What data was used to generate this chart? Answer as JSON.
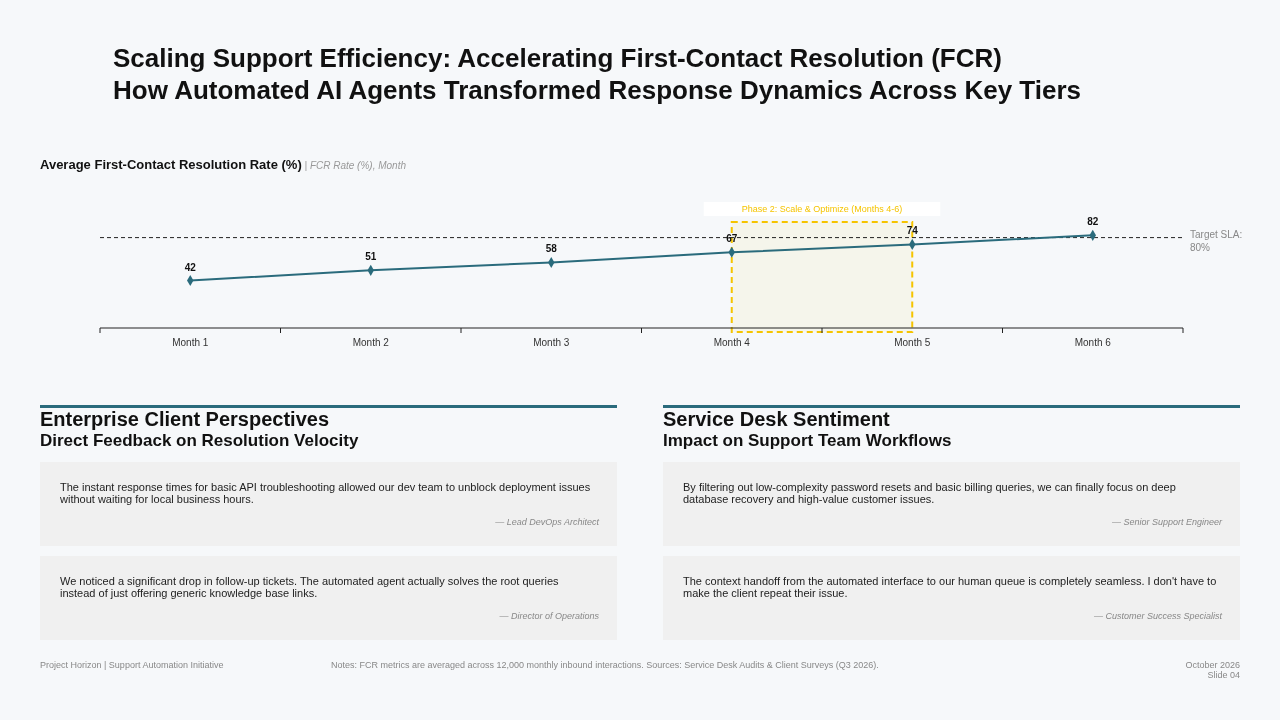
{
  "chart_data": {
    "type": "line",
    "title": "Scaling Support Efficiency: Accelerating First-Contact Resolution (FCR)",
    "subtitle": "How Automated AI Agents Transformed Response Dynamics Across Key Tiers",
    "categories": [
      "Month 1",
      "Month 2",
      "Month 3",
      "Month 4",
      "Month 5",
      "Month 6"
    ],
    "series": [
      {
        "color": "#2a6b7c",
        "values": [
          42,
          51,
          58,
          67,
          74,
          82
        ]
      }
    ],
    "tick_labels": "x",
    "marker": "diamond",
    "line_style": "solid",
    "data_labels": true,
    "ref_lines": [
      {
        "axis": "y",
        "value": 80,
        "label": "Target SLA: 80%",
        "color": "#222222",
        "line_style": "dashed"
      }
    ],
    "bands": [
      {
        "axis": "x",
        "from": "Month 4",
        "to": "Month 5",
        "label": "Phase 2: Scale & Optimize (Months 4-6)",
        "color": "#f5c400"
      }
    ],
    "annotations": [
      "Average First-Contact Resolution Rate (%)",
      "| FCR Rate (%), Month",
      "Enterprise Client Perspectives",
      "Direct Feedback on Resolution Velocity",
      "The instant response times for basic API troubleshooting allowed our dev team to unblock deployment issues without waiting for local business hours.",
      "— Lead DevOps Architect",
      "We noticed a significant drop in follow-up tickets. The automated agent actually solves the root queries instead of just offering generic knowledge base links.",
      "— Director of Operations",
      "Service Desk Sentiment",
      "Impact on Support Team Workflows",
      "By filtering out low-complexity password resets and basic billing queries, we can finally focus on deep database recovery and high-value customer issues.",
      "— Senior Support Engineer",
      "The context handoff from the automated interface to our human queue is completely seamless. I don't have to make the client repeat their issue.",
      "— Customer Success Specialist",
      "Project Horizon | Support Automation Initiative",
      "Notes: FCR metrics are averaged across 12,000 monthly inbound interactions. Sources: Service Desk Audits & Client Surveys (Q3 2026).",
      "October 2026",
      "Slide 04"
    ]
  }
}
